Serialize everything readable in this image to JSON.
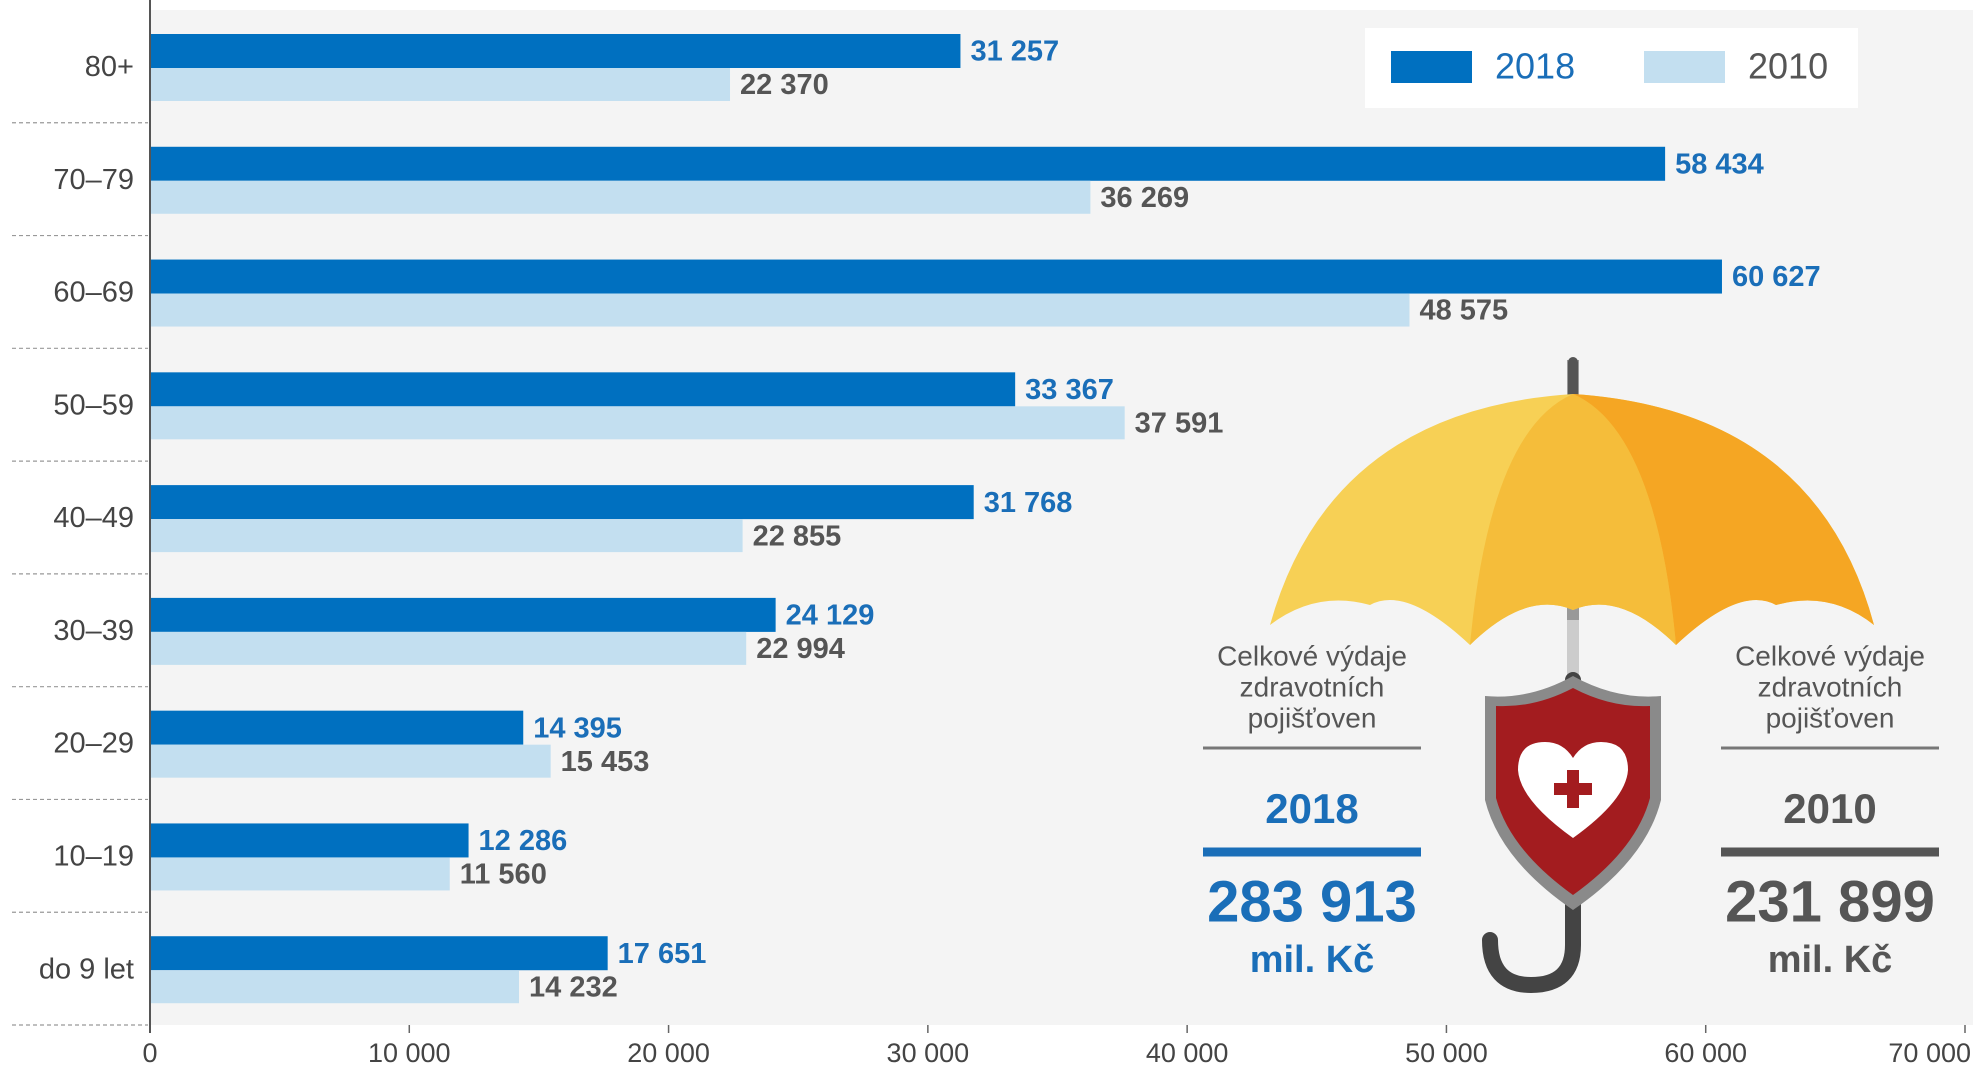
{
  "chart_data": {
    "type": "hbar",
    "categories": [
      "80+",
      "70–79",
      "60–69",
      "50–59",
      "40–49",
      "30–39",
      "20–29",
      "10–19",
      "do 9 let"
    ],
    "series": [
      {
        "name": "2018",
        "color": "#0070c0",
        "label_color": "#1a6eb8",
        "values": [
          31257,
          58434,
          60627,
          33367,
          31768,
          24129,
          14395,
          12286,
          17651
        ],
        "value_labels": [
          "31 257",
          "58 434",
          "60 627",
          "33 367",
          "31 768",
          "24 129",
          "14 395",
          "12 286",
          "17 651"
        ]
      },
      {
        "name": "2010",
        "color": "#c3dff0",
        "label_color": "#555555",
        "values": [
          22370,
          36269,
          48575,
          37591,
          22855,
          22994,
          15453,
          11560,
          14232
        ],
        "value_labels": [
          "22 370",
          "36 269",
          "48 575",
          "37 591",
          "22 855",
          "22 994",
          "15 453",
          "11 560",
          "14 232"
        ]
      }
    ],
    "xlim": [
      0,
      70000
    ],
    "xticks": [
      0,
      {
        "value": 10000,
        "label": "10 000"
      },
      {
        "value": 20000,
        "label": "20 000"
      },
      {
        "value": 30000,
        "label": "30 000"
      },
      {
        "value": 40000,
        "label": "40 000"
      },
      {
        "value": 50000,
        "label": "50 000"
      },
      {
        "value": 60000,
        "label": "60 000"
      },
      {
        "value": 70000,
        "label": "70 000"
      }
    ],
    "legend_position": "upper right",
    "summary": [
      {
        "caption": [
          "Celkové výdaje",
          "zdravotních",
          "pojišťoven"
        ],
        "year": "2018",
        "amount": "283 913",
        "unit": "mil. Kč",
        "color": "#1a6eb8"
      },
      {
        "caption": [
          "Celkové výdaje",
          "zdravotních",
          "pojišťoven"
        ],
        "year": "2010",
        "amount": "231 899",
        "unit": "mil. Kč",
        "color": "#555555"
      }
    ]
  }
}
